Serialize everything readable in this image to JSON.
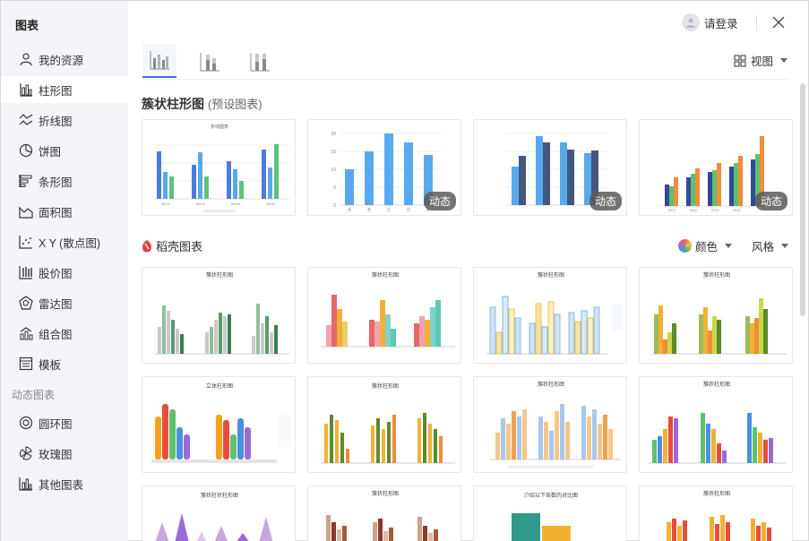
{
  "sidebar": {
    "title": "图表",
    "items": [
      {
        "label": "我的资源",
        "icon": "user-icon"
      },
      {
        "label": "柱形图",
        "icon": "bar-chart-icon"
      },
      {
        "label": "折线图",
        "icon": "line-chart-icon"
      },
      {
        "label": "饼图",
        "icon": "pie-chart-icon"
      },
      {
        "label": "条形图",
        "icon": "horizontal-bar-icon"
      },
      {
        "label": "面积图",
        "icon": "area-chart-icon"
      },
      {
        "label": "X Y (散点图)",
        "icon": "scatter-chart-icon"
      },
      {
        "label": "股价图",
        "icon": "stock-chart-icon"
      },
      {
        "label": "雷达图",
        "icon": "radar-chart-icon"
      },
      {
        "label": "组合图",
        "icon": "combo-chart-icon"
      },
      {
        "label": "模板",
        "icon": "template-icon"
      }
    ],
    "section_label": "动态图表",
    "dynamic_items": [
      {
        "label": "圆环图",
        "icon": "donut-chart-icon"
      },
      {
        "label": "玫瑰图",
        "icon": "rose-chart-icon"
      },
      {
        "label": "其他图表",
        "icon": "other-chart-icon"
      }
    ]
  },
  "header": {
    "login_label": "请登录",
    "view_label": "视图"
  },
  "section_preset": {
    "title": "簇状柱形图",
    "subtitle": "(预设图表)",
    "badge": "动态",
    "thumb_titles": [
      "折线图表"
    ],
    "thumb1_cats": [
      "Item1",
      "Item2",
      "Item3",
      "Item4"
    ],
    "thumb2_cats": [
      "A",
      "B",
      "C",
      "D",
      "E"
    ],
    "thumb2_yticks": [
      "20",
      "15",
      "10",
      "5",
      "0"
    ],
    "thumb4_cats": [
      "2011",
      "Mon",
      "2013",
      "2014"
    ]
  },
  "section_daoke": {
    "title": "稻壳图表",
    "color_label": "颜色",
    "style_label": "风格",
    "row1_title": "簇状柱形图",
    "row2_titles": [
      "立体柱形图",
      "簇状柱形图",
      "簇状柱形图",
      "簇状柱形图"
    ],
    "row3_titles": [
      "簇状柱状柱形图",
      "簇状柱形图",
      "介绍以下各数的对比图",
      "簇状柱形图"
    ],
    "cats": [
      "一月",
      "二月",
      "三月"
    ]
  },
  "colors": {
    "accent": "#3b74e6",
    "blue": "#4a90e2",
    "green": "#5ec26a",
    "orange": "#f08c3a",
    "gold": "#f2b134",
    "navy": "#3c5a99",
    "purple": "#9b6ad8"
  }
}
